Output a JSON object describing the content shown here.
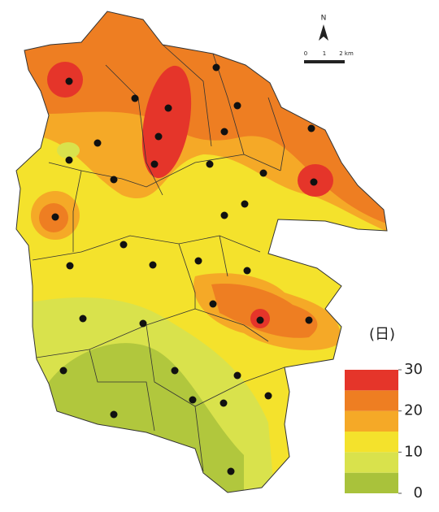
{
  "north": "N",
  "scale_bar": {
    "labels": [
      "0",
      "1",
      "2 km"
    ]
  },
  "legend": {
    "unit": "(日)",
    "range": [
      0,
      30
    ],
    "ticks": [
      30,
      20,
      10,
      0
    ],
    "bands": [
      {
        "from": 0,
        "to": 5,
        "color": "#a9c23b"
      },
      {
        "from": 5,
        "to": 10,
        "color": "#d9e24c"
      },
      {
        "from": 10,
        "to": 15,
        "color": "#f4e22c"
      },
      {
        "from": 15,
        "to": 20,
        "color": "#f5a927"
      },
      {
        "from": 20,
        "to": 25,
        "color": "#ee7e22"
      },
      {
        "from": 25,
        "to": 30,
        "color": "#e5352a"
      }
    ]
  }
}
